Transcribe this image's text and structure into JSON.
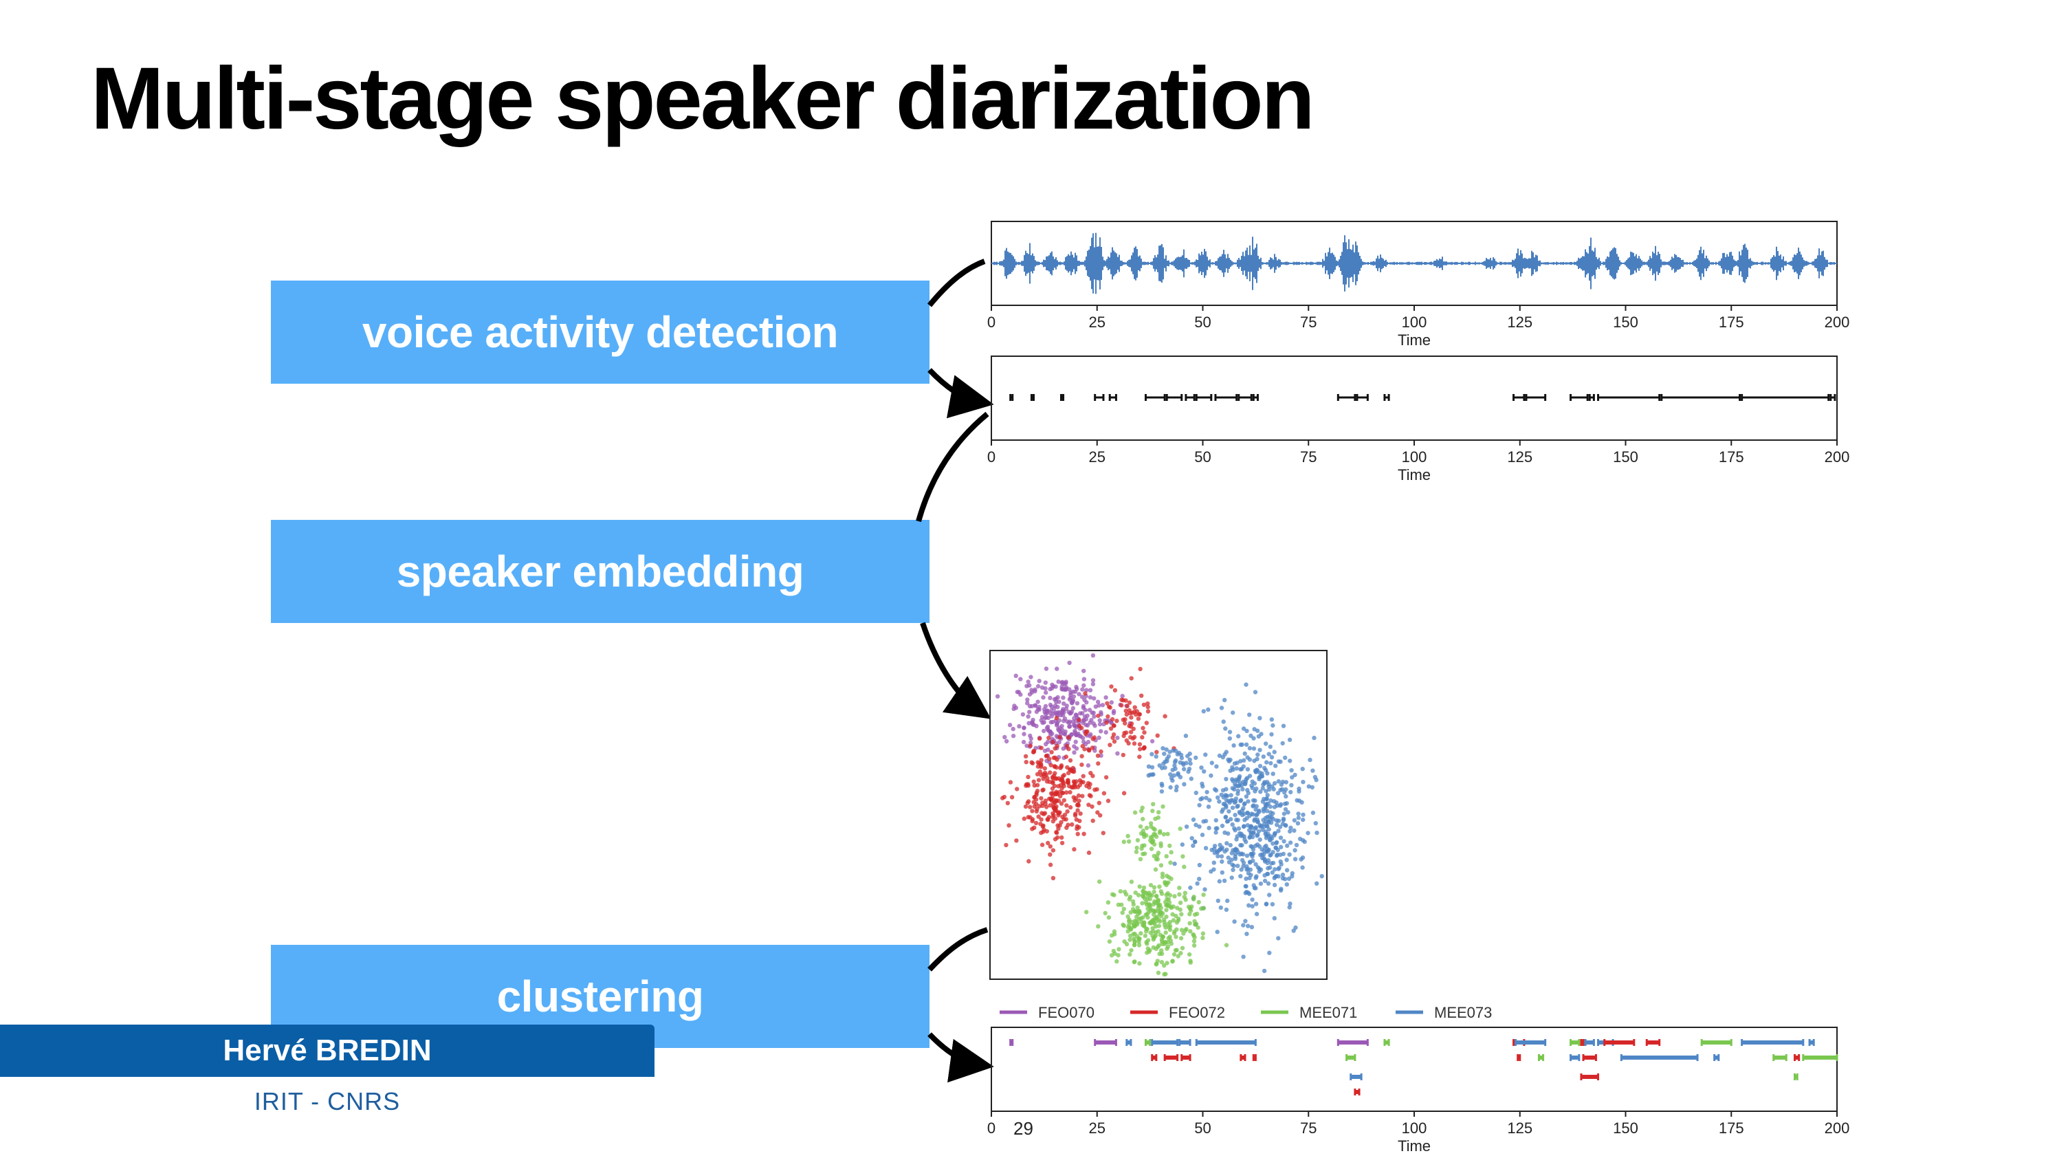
{
  "slide": {
    "title": "Multi-stage speaker diarization",
    "stages": [
      "voice activity detection",
      "speaker embedding",
      "clustering"
    ],
    "page_number": "29"
  },
  "presenter": {
    "name": "Hervé BREDIN",
    "affiliation": "IRIT - CNRS"
  },
  "colors": {
    "stage_box": "#57aff9",
    "waveform": "#4a7fbf",
    "lower_third": "#0a5ea6",
    "FEO070": "#9b59b6",
    "FEO072": "#d62728",
    "MEE071": "#7ac74f",
    "MEE073": "#4f86c6"
  },
  "icons": [
    "curved-arrow-icon"
  ],
  "chart_data": [
    {
      "type": "line",
      "name": "waveform",
      "xlabel": "Time",
      "xlim": [
        0,
        200
      ],
      "xticks": [
        0,
        25,
        50,
        75,
        100,
        125,
        150,
        175,
        200
      ],
      "bursts": [
        {
          "t": 4,
          "a": 0.5
        },
        {
          "t": 9,
          "a": 0.6
        },
        {
          "t": 14,
          "a": 0.45
        },
        {
          "t": 19,
          "a": 0.55
        },
        {
          "t": 24,
          "a": 0.9
        },
        {
          "t": 25,
          "a": 1.0
        },
        {
          "t": 29,
          "a": 0.6
        },
        {
          "t": 34,
          "a": 0.55
        },
        {
          "t": 40,
          "a": 0.6
        },
        {
          "t": 45,
          "a": 0.55
        },
        {
          "t": 50,
          "a": 0.55
        },
        {
          "t": 55,
          "a": 0.5
        },
        {
          "t": 60,
          "a": 0.55
        },
        {
          "t": 62,
          "a": 0.8
        },
        {
          "t": 67,
          "a": 0.3
        },
        {
          "t": 80,
          "a": 0.5
        },
        {
          "t": 84,
          "a": 1.0
        },
        {
          "t": 86,
          "a": 0.7
        },
        {
          "t": 92,
          "a": 0.3
        },
        {
          "t": 106,
          "a": 0.25
        },
        {
          "t": 118,
          "a": 0.25
        },
        {
          "t": 125,
          "a": 0.5
        },
        {
          "t": 128,
          "a": 0.45
        },
        {
          "t": 140,
          "a": 0.5
        },
        {
          "t": 142,
          "a": 0.8
        },
        {
          "t": 147,
          "a": 0.55
        },
        {
          "t": 152,
          "a": 0.5
        },
        {
          "t": 157,
          "a": 0.55
        },
        {
          "t": 162,
          "a": 0.45
        },
        {
          "t": 168,
          "a": 0.5
        },
        {
          "t": 174,
          "a": 0.55
        },
        {
          "t": 178,
          "a": 0.7
        },
        {
          "t": 186,
          "a": 0.55
        },
        {
          "t": 191,
          "a": 0.5
        },
        {
          "t": 196,
          "a": 0.5
        }
      ]
    },
    {
      "type": "scatter",
      "name": "speech-segments",
      "xlabel": "Time",
      "xlim": [
        0,
        200
      ],
      "xticks": [
        0,
        25,
        50,
        75,
        100,
        125,
        150,
        175,
        200
      ],
      "segments": [
        [
          4.5,
          5
        ],
        [
          9.5,
          10
        ],
        [
          16.5,
          17
        ],
        [
          24.5,
          26.5
        ],
        [
          28,
          29.5
        ],
        [
          36.5,
          41
        ],
        [
          41.5,
          45
        ],
        [
          46,
          48
        ],
        [
          48.5,
          52
        ],
        [
          53,
          58
        ],
        [
          58.5,
          61.5
        ],
        [
          62,
          63
        ],
        [
          82,
          86
        ],
        [
          86.5,
          89
        ],
        [
          93,
          94
        ],
        [
          123.5,
          126
        ],
        [
          126.5,
          131
        ],
        [
          137,
          141
        ],
        [
          141.5,
          142.5
        ],
        [
          143.5,
          158
        ],
        [
          158.5,
          177
        ],
        [
          177.5,
          198
        ],
        [
          198.5,
          199.5
        ]
      ]
    },
    {
      "type": "scatter",
      "name": "embedding-space",
      "clusters": [
        {
          "speaker": "FEO070",
          "cx": 0.22,
          "cy": 0.2,
          "sx": 0.075,
          "sy": 0.07,
          "n": 320
        },
        {
          "speaker": "FEO072",
          "cx": 0.2,
          "cy": 0.43,
          "sx": 0.065,
          "sy": 0.09,
          "n": 300
        },
        {
          "speaker": "FEO072",
          "cx": 0.4,
          "cy": 0.22,
          "sx": 0.05,
          "sy": 0.05,
          "n": 80
        },
        {
          "speaker": "MEE073",
          "cx": 0.78,
          "cy": 0.52,
          "sx": 0.08,
          "sy": 0.14,
          "n": 600
        },
        {
          "speaker": "MEE073",
          "cx": 0.55,
          "cy": 0.35,
          "sx": 0.04,
          "sy": 0.04,
          "n": 60
        },
        {
          "speaker": "MEE071",
          "cx": 0.49,
          "cy": 0.82,
          "sx": 0.065,
          "sy": 0.07,
          "n": 330
        },
        {
          "speaker": "MEE071",
          "cx": 0.47,
          "cy": 0.57,
          "sx": 0.03,
          "sy": 0.05,
          "n": 60
        }
      ]
    },
    {
      "type": "bar",
      "name": "diarization-output",
      "xlabel": "Time",
      "xlim": [
        0,
        200
      ],
      "xticks": [
        0,
        25,
        50,
        75,
        100,
        125,
        150,
        175,
        200
      ],
      "legend": [
        "FEO070",
        "FEO072",
        "MEE071",
        "MEE073"
      ],
      "segments": [
        {
          "speaker": "FEO070",
          "start": 4.5,
          "end": 5,
          "row": 0
        },
        {
          "speaker": "FEO070",
          "start": 24.5,
          "end": 29.5,
          "row": 0
        },
        {
          "speaker": "MEE073",
          "start": 32,
          "end": 33,
          "row": 0
        },
        {
          "speaker": "MEE071",
          "start": 36.5,
          "end": 37.5,
          "row": 0
        },
        {
          "speaker": "MEE073",
          "start": 38,
          "end": 44,
          "row": 0
        },
        {
          "speaker": "FEO072",
          "start": 38,
          "end": 39,
          "row": 1
        },
        {
          "speaker": "FEO072",
          "start": 41,
          "end": 44,
          "row": 1
        },
        {
          "speaker": "MEE073",
          "start": 44.5,
          "end": 47,
          "row": 0
        },
        {
          "speaker": "FEO072",
          "start": 45,
          "end": 47,
          "row": 1
        },
        {
          "speaker": "MEE073",
          "start": 48.5,
          "end": 62.5,
          "row": 0
        },
        {
          "speaker": "FEO072",
          "start": 59,
          "end": 60,
          "row": 1
        },
        {
          "speaker": "FEO072",
          "start": 62,
          "end": 62.5,
          "row": 1
        },
        {
          "speaker": "FEO070",
          "start": 82,
          "end": 89,
          "row": 0
        },
        {
          "speaker": "MEE071",
          "start": 84,
          "end": 86,
          "row": 1
        },
        {
          "speaker": "MEE073",
          "start": 85,
          "end": 87.5,
          "row": 2
        },
        {
          "speaker": "FEO072",
          "start": 86,
          "end": 87,
          "row": 3
        },
        {
          "speaker": "MEE071",
          "start": 93,
          "end": 94,
          "row": 0
        },
        {
          "speaker": "FEO072",
          "start": 123.5,
          "end": 126,
          "row": 0
        },
        {
          "speaker": "MEE073",
          "start": 124,
          "end": 131,
          "row": 0
        },
        {
          "speaker": "FEO072",
          "start": 124.5,
          "end": 125,
          "row": 1
        },
        {
          "speaker": "MEE071",
          "start": 129.5,
          "end": 130.5,
          "row": 1
        },
        {
          "speaker": "MEE071",
          "start": 137,
          "end": 139,
          "row": 0
        },
        {
          "speaker": "MEE073",
          "start": 137,
          "end": 139,
          "row": 1
        },
        {
          "speaker": "FEO072",
          "start": 139.5,
          "end": 140,
          "row": 0
        },
        {
          "speaker": "MEE073",
          "start": 140.5,
          "end": 142.5,
          "row": 0
        },
        {
          "speaker": "FEO072",
          "start": 140,
          "end": 143,
          "row": 1
        },
        {
          "speaker": "FEO072",
          "start": 139.5,
          "end": 143.5,
          "row": 2
        },
        {
          "speaker": "MEE073",
          "start": 143.5,
          "end": 147,
          "row": 0
        },
        {
          "speaker": "FEO072",
          "start": 145,
          "end": 152,
          "row": 0
        },
        {
          "speaker": "MEE073",
          "start": 149,
          "end": 167,
          "row": 1
        },
        {
          "speaker": "FEO072",
          "start": 155,
          "end": 158,
          "row": 0
        },
        {
          "speaker": "MEE071",
          "start": 168,
          "end": 175,
          "row": 0
        },
        {
          "speaker": "MEE073",
          "start": 171,
          "end": 172,
          "row": 1
        },
        {
          "speaker": "MEE073",
          "start": 177.5,
          "end": 192,
          "row": 0
        },
        {
          "speaker": "MEE071",
          "start": 185,
          "end": 188,
          "row": 1
        },
        {
          "speaker": "FEO072",
          "start": 190,
          "end": 191,
          "row": 1
        },
        {
          "speaker": "MEE071",
          "start": 192,
          "end": 200,
          "row": 1
        },
        {
          "speaker": "MEE073",
          "start": 193.5,
          "end": 194.5,
          "row": 0
        },
        {
          "speaker": "MEE071",
          "start": 190,
          "end": 190.6,
          "row": 2
        }
      ]
    }
  ]
}
